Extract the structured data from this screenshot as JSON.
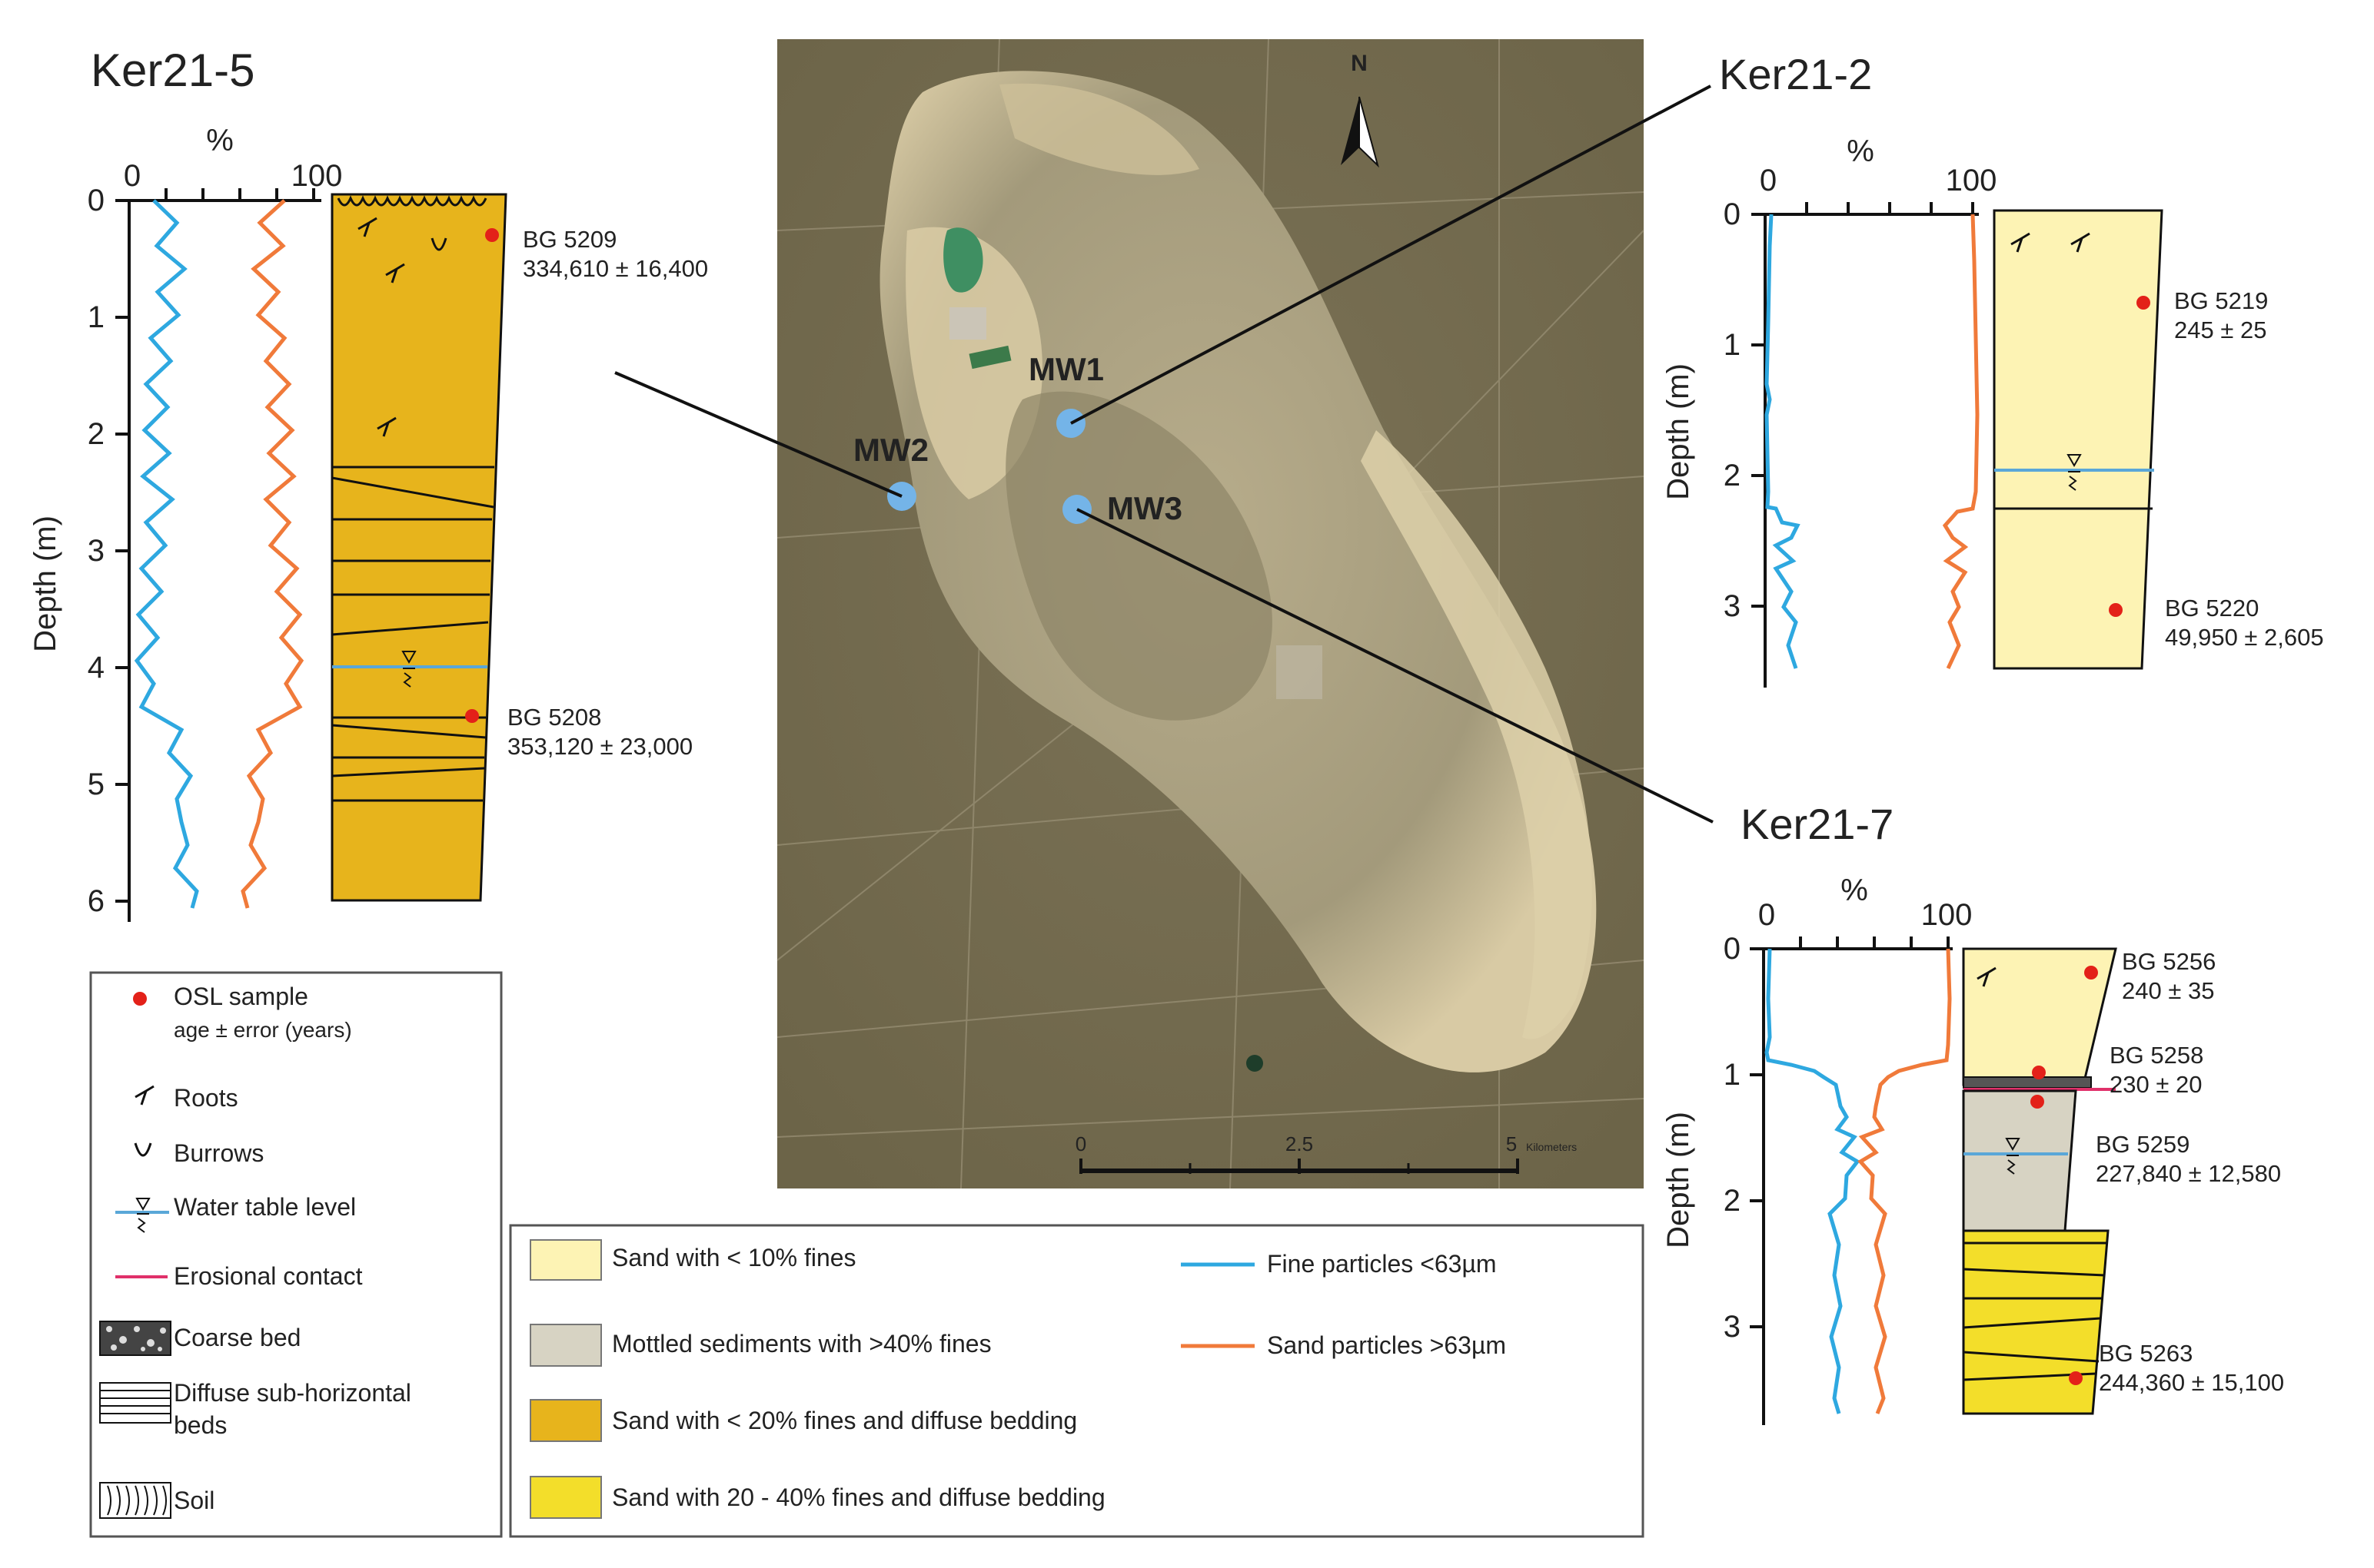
{
  "colors": {
    "fine": "#2ea8e0",
    "sand": "#f07a3a",
    "sand_lt10": "#fdf3b4",
    "mottled": "#d7d3c3",
    "sand_lt20": "#e7b41c",
    "sand_20_40": "#f3de2a",
    "erosional": "#e0306a",
    "osl": "#e32119",
    "water": "#5aa7d8",
    "well": "#74b4e8"
  },
  "map": {
    "north_label": "N",
    "wells": [
      {
        "label": "MW1"
      },
      {
        "label": "MW2"
      },
      {
        "label": "MW3"
      }
    ],
    "scale": {
      "ticks": [
        "0",
        "2.5",
        "5"
      ],
      "unit": "Kilometers"
    }
  },
  "logs": [
    {
      "id": "ker21-5",
      "title": "Ker21-5",
      "pct_label": "%",
      "pct_ticks": [
        "0",
        "100"
      ],
      "ylabel": "Depth (m)",
      "depth_ticks": [
        "0",
        "1",
        "2",
        "3",
        "4",
        "5",
        "6"
      ],
      "samples": [
        {
          "code": "BG 5209",
          "age": "334,610 ± 16,400"
        },
        {
          "code": "BG 5208",
          "age": "353,120 ± 23,000"
        }
      ]
    },
    {
      "id": "ker21-2",
      "title": "Ker21-2",
      "pct_label": "%",
      "pct_ticks": [
        "0",
        "100"
      ],
      "ylabel": "Depth (m)",
      "depth_ticks": [
        "0",
        "1",
        "2",
        "3"
      ],
      "samples": [
        {
          "code": "BG 5219",
          "age": "245 ± 25"
        },
        {
          "code": "BG 5220",
          "age": "49,950 ± 2,605"
        }
      ]
    },
    {
      "id": "ker21-7",
      "title": "Ker21-7",
      "pct_label": "%",
      "pct_ticks": [
        "0",
        "100"
      ],
      "ylabel": "Depth (m)",
      "depth_ticks": [
        "0",
        "1",
        "2",
        "3"
      ],
      "samples": [
        {
          "code": "BG 5256",
          "age": "240 ± 35"
        },
        {
          "code": "BG 5258",
          "age": "230 ± 20"
        },
        {
          "code": "BG 5259",
          "age": "227,840 ± 12,580"
        },
        {
          "code": "BG 5263",
          "age": "244,360 ± 15,100"
        }
      ]
    }
  ],
  "legend_symbols": {
    "osl": "OSL sample",
    "osl_sub": "age ± error (years)",
    "roots": "Roots",
    "burrows": "Burrows",
    "water": "Water table level",
    "erosional": "Erosional contact",
    "coarse": "Coarse bed",
    "diffuse_1": "Diffuse sub-horizontal",
    "diffuse_2": "beds",
    "soil": "Soil"
  },
  "legend_units": {
    "sand_lt10": "Sand with < 10% fines",
    "mottled": "Mottled sediments with >40% fines",
    "sand_lt20": "Sand with < 20% fines and diffuse bedding",
    "sand_20_40": "Sand with 20 - 40% fines and diffuse bedding",
    "fine": "Fine particles <63µm",
    "sand": "Sand particles >63µm"
  }
}
